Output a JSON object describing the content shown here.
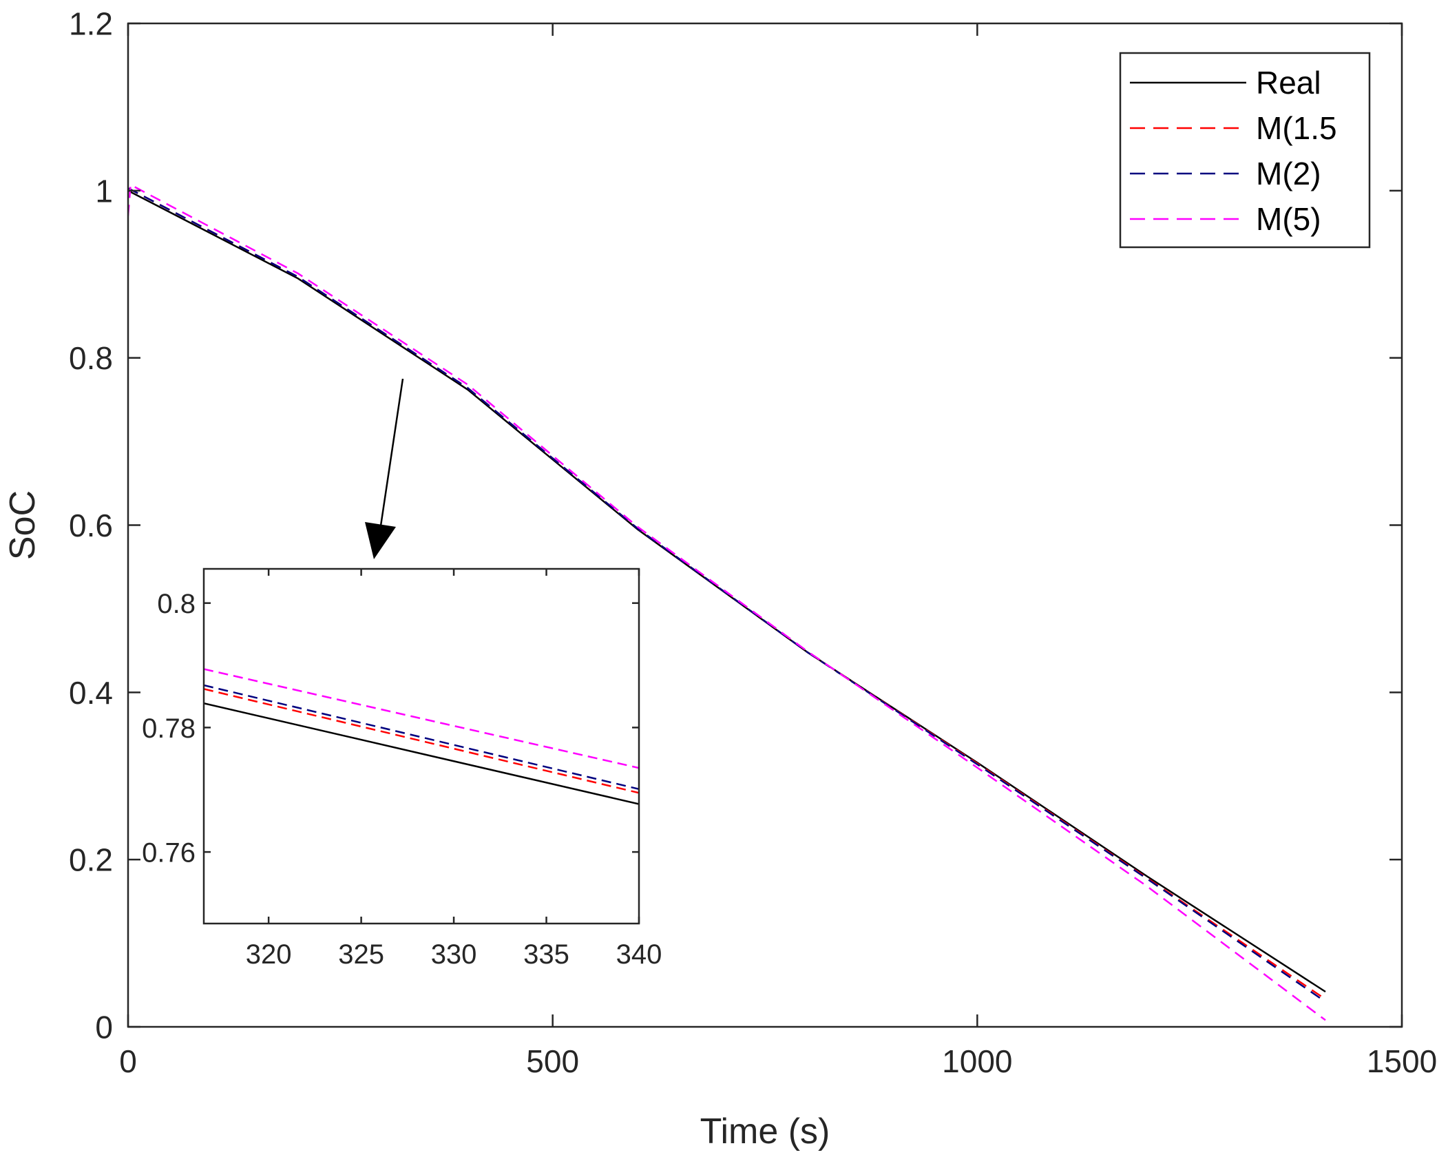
{
  "chart_data": [
    {
      "type": "line",
      "title": "",
      "xlabel": "Time (s)",
      "ylabel": "SoC",
      "xlim": [
        0,
        1500
      ],
      "ylim": [
        0,
        1.2
      ],
      "x_ticks": [
        0,
        500,
        1000,
        1500
      ],
      "y_ticks": [
        0,
        0.2,
        0.4,
        0.6,
        0.8,
        1,
        1.2
      ],
      "x_tick_labels": [
        "0",
        "500",
        "1000",
        "1500"
      ],
      "y_tick_labels": [
        "0",
        "0.2",
        "0.4",
        "0.6",
        "0.8",
        "1",
        "1.2"
      ],
      "grid": false,
      "legend_position": "top-right",
      "series": [
        {
          "name": "Real",
          "color": "#000000",
          "dash": "solid",
          "x": [
            0,
            200,
            400,
            600,
            800,
            1000,
            1200,
            1410
          ],
          "y": [
            1.0,
            0.895,
            0.762,
            0.595,
            0.448,
            0.316,
            0.18,
            0.042
          ]
        },
        {
          "name": "M(1.5",
          "color": "#ff0000",
          "dash": "dashed",
          "x": [
            0,
            200,
            400,
            600,
            800,
            1000,
            1200,
            1410
          ],
          "y": [
            1.003,
            0.897,
            0.764,
            0.596,
            0.448,
            0.315,
            0.178,
            0.033
          ]
        },
        {
          "name": "M(2)",
          "color": "#00007f",
          "dash": "dashed",
          "x": [
            0,
            200,
            400,
            600,
            800,
            1000,
            1200,
            1410
          ],
          "y": [
            1.003,
            0.897,
            0.764,
            0.596,
            0.448,
            0.314,
            0.177,
            0.03
          ]
        },
        {
          "name": "M(5)",
          "color": "#ff00ff",
          "dash": "dashed",
          "x": [
            0,
            3,
            200,
            400,
            600,
            800,
            1000,
            1200,
            1410
          ],
          "y": [
            0.97,
            1.007,
            0.901,
            0.768,
            0.598,
            0.449,
            0.31,
            0.168,
            0.008
          ]
        }
      ]
    },
    {
      "type": "line",
      "title": "",
      "xlabel": "",
      "ylabel": "",
      "xlim": [
        316.5,
        340
      ],
      "ylim": [
        0.7485,
        0.8055
      ],
      "x_ticks": [
        320,
        325,
        330,
        335,
        340
      ],
      "y_ticks": [
        0.76,
        0.78,
        0.8
      ],
      "x_tick_labels": [
        "320",
        "325",
        "330",
        "335",
        "340"
      ],
      "y_tick_labels": [
        "0.76",
        "0.78",
        "0.8"
      ],
      "grid": false,
      "series": [
        {
          "name": "Real",
          "color": "#000000",
          "dash": "solid",
          "x": [
            316.5,
            340
          ],
          "y": [
            0.7839,
            0.7677
          ]
        },
        {
          "name": "M(1.5",
          "color": "#ff0000",
          "dash": "dashed",
          "x": [
            316.5,
            340
          ],
          "y": [
            0.7862,
            0.7695
          ]
        },
        {
          "name": "M(2)",
          "color": "#00007f",
          "dash": "dashed",
          "x": [
            316.5,
            340
          ],
          "y": [
            0.7868,
            0.7701
          ]
        },
        {
          "name": "M(5)",
          "color": "#ff00ff",
          "dash": "dashed",
          "x": [
            316.5,
            340
          ],
          "y": [
            0.7894,
            0.7735
          ]
        }
      ]
    }
  ]
}
